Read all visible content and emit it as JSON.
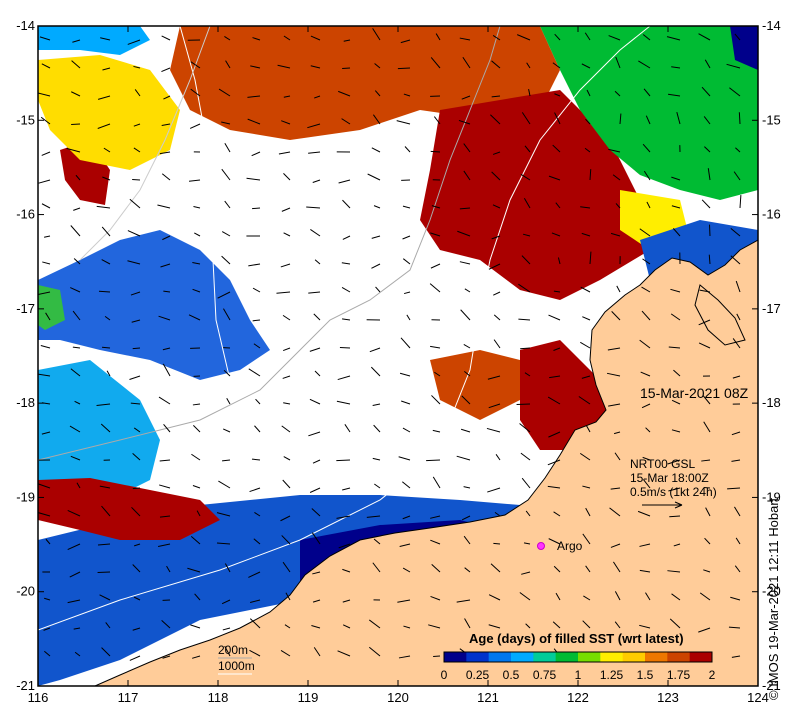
{
  "map": {
    "x_ticks": [
      "116",
      "117",
      "118",
      "119",
      "120",
      "121",
      "122",
      "123",
      "124"
    ],
    "y_ticks": [
      "-14",
      "-15",
      "-16",
      "-17",
      "-18",
      "-19",
      "-20",
      "-21"
    ],
    "timestamp": "15-Mar-2021 08Z",
    "product": "NRT00 GSL",
    "current_time": "15-Mar 18:00Z",
    "vector_scale": "0.5m/s (1kt 24h)",
    "argo_label": "Argo",
    "isobath_200": "200m",
    "isobath_1000": "1000m",
    "credit": "© IMOS 19-Mar-2021 12:11 Hobart",
    "colors": {
      "land": "#ffcc99",
      "ocean_unfilled": "#ffffff",
      "argo_marker": "#ff33ff"
    }
  },
  "colorbar": {
    "title": "Age (days) of filled SST (wrt latest)",
    "ticks": [
      "0",
      "0.25",
      "0.5",
      "0.75",
      "1",
      "1.25",
      "1.5",
      "1.75",
      "2"
    ],
    "colors": [
      "#00008b",
      "#0033cc",
      "#0077ee",
      "#00aaff",
      "#00cc99",
      "#00bb33",
      "#77dd00",
      "#ffee00",
      "#ffcc00",
      "#ee7700",
      "#cc4400",
      "#aa0000"
    ]
  }
}
